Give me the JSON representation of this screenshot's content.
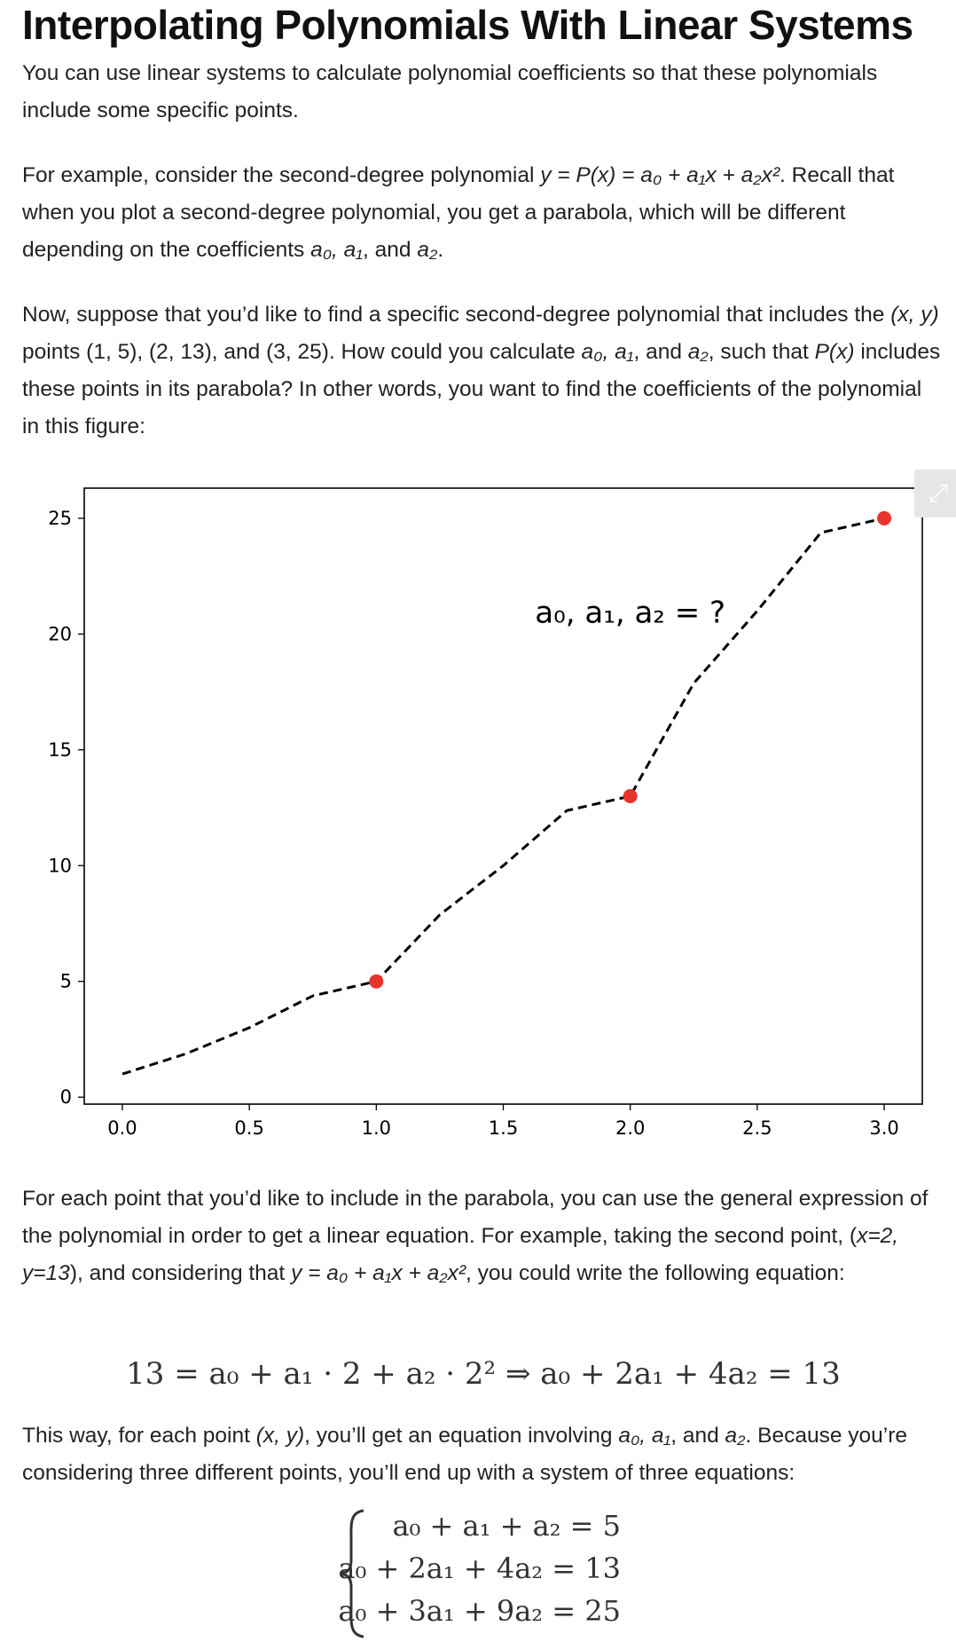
{
  "title": "Interpolating Polynomials With Linear Systems",
  "paragraphs": {
    "p1": "You can use linear systems to calculate polynomial coefficients so that these polynomials include some specific points.",
    "p2_a": "For example, consider the second-degree polynomial ",
    "p2_math": "y = P(x) = a₀ + a₁x + a₂x²",
    "p2_b": ". Recall that when you plot a second-degree polynomial, you get a parabola, which will be different depending on the coefficients ",
    "p2_coefs": "a₀, a₁",
    "p2_and": ", and ",
    "p2_last": "a₂",
    "p2_end": ".",
    "p3_a": "Now, suppose that you’d like to find a specific second-degree polynomial that includes the ",
    "p3_xy": "(x, y)",
    "p3_b": " points (1, 5), (2, 13), and (3, 25). How could you calculate ",
    "p3_coefs": "a₀, a₁",
    "p3_and": ", and ",
    "p3_last": "a₂",
    "p3_c": ", such that ",
    "p3_px": "P(x)",
    "p3_d": " includes these points in its parabola? In other words, you want to find the coefficients of the polynomial in this figure:",
    "p4_a": "For each point that you’d like to include in the parabola, you can use the general expression of the polynomial in order to get a linear equation. For example, taking the second point, (",
    "p4_pt": "x=2, y=13",
    "p4_b": "), and considering that ",
    "p4_math": "y = a₀ + a₁x + a₂x²",
    "p4_c": ", you could write the following equation:",
    "p5_a": "This way, for each point ",
    "p5_xy": "(x, y)",
    "p5_b": ", you’ll get an equation involving ",
    "p5_coefs": "a₀, a₁",
    "p5_and": ", and ",
    "p5_last": "a₂",
    "p5_c": ". Because you’re considering three different points, you’ll end up with a system of three equations:"
  },
  "equation": "13 = a₀ + a₁ · 2 + a₂ · 2² ⇒ a₀ + 2a₁ + 4a₂ = 13",
  "system": {
    "rows": [
      "a₀ + a₁ + a₂ = 5",
      "a₀ + 2a₁ + 4a₂ = 13",
      "a₀ + 3a₁ + 9a₂ = 25"
    ]
  },
  "expand_icon": "expand-icon",
  "chart_data": {
    "type": "line",
    "annotation": "a₀, a₁, a₂ = ?",
    "curve": {
      "x": [
        0,
        0.25,
        0.5,
        0.75,
        1,
        1.25,
        1.5,
        1.75,
        2,
        2.25,
        2.5,
        2.75,
        3
      ],
      "y": [
        1,
        1.875,
        3,
        4.375,
        5,
        7.875,
        10,
        12.375,
        13,
        17.875,
        21,
        24.375,
        25
      ],
      "style": "dashed",
      "color": "#000000"
    },
    "points": {
      "x": [
        1,
        2,
        3
      ],
      "y": [
        5,
        13,
        25
      ],
      "color": "#e8332a"
    },
    "xlim": [
      -0.15,
      3.15
    ],
    "ylim": [
      -0.3,
      26.3
    ],
    "xticks": [
      "0.0",
      "0.5",
      "1.0",
      "1.5",
      "2.0",
      "2.5",
      "3.0"
    ],
    "xtick_values": [
      0,
      0.5,
      1,
      1.5,
      2,
      2.5,
      3
    ],
    "yticks": [
      "0",
      "5",
      "10",
      "15",
      "20",
      "25"
    ],
    "ytick_values": [
      0,
      5,
      10,
      15,
      20,
      25
    ],
    "grid": false
  }
}
